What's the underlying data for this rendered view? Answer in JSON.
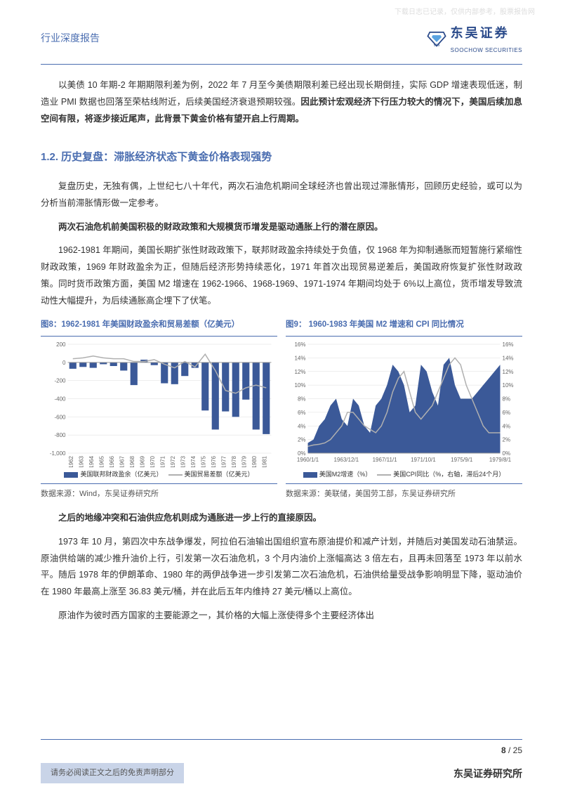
{
  "watermark": "下载日志已记录，仅供内部参考，股票报告网",
  "header": {
    "category": "行业深度报告",
    "logo_cn": "东吴证券",
    "logo_en": "SOOCHOW SECURITIES"
  },
  "paragraphs": {
    "p1": "以美债 10 年期-2 年期期限利差为例，2022 年 7 月至今美债期限利差已经出现长期倒挂，实际 GDP 增速表现低迷，制造业 PMI 数据也回落至荣枯线附近，后续美国经济衰退预期较强。",
    "p1_bold": "因此预计宏观经济下行压力较大的情况下，美国后续加息空间有限，将逐步接近尾声，此背景下黄金价格有望开启上行周期。",
    "section_title": "1.2.  历史复盘：滞胀经济状态下黄金价格表现强势",
    "p2": "复盘历史，无独有偶，上世纪七八十年代，两次石油危机期间全球经济也曾出现过滞胀情形，回顾历史经验，或可以为分析当前滞胀情形做一定参考。",
    "p3_bold": "两次石油危机前美国积极的财政政策和大规模货币增发是驱动通胀上行的潜在原因。",
    "p4": "1962-1981 年期间，美国长期扩张性财政政策下，联邦财政盈余持续处于负值，仅 1968 年为抑制通胀而短暂施行紧缩性财政政策，1969 年财政盈余为正，但随后经济形势持续恶化，1971 年首次出现贸易逆差后，美国政府恢复扩张性财政政策。同时货币政策方面，美国 M2 增速在 1962-1966、1968-1969、1971-1974 年期间均处于 6%以上高位，货币增发导致流动性大幅提升，为后续通胀高企埋下了伏笔。",
    "p5_bold": "之后的地缘冲突和石油供应危机则成为通胀进一步上行的直接原因。",
    "p6": "1973 年 10 月，第四次中东战争爆发，阿拉伯石油输出国组织宣布原油提价和减产计划，并随后对美国发动石油禁运。原油供给端的减少推升油价上行，引发第一次石油危机，3 个月内油价上涨幅高达 3 倍左右，且再未回落至 1973 年以前水平。随后 1978 年的伊朗革命、1980 年的两伊战争进一步引发第二次石油危机，石油供给量受战争影响明显下降，驱动油价在 1980 年最高上涨至 36.83 美元/桶，并在此后五年内维持 27 美元/桶以上高位。",
    "p7": "原油作为彼时西方国家的主要能源之一，其价格的大幅上涨使得多个主要经济体出"
  },
  "chart8": {
    "title": "图8：1962-1981 年美国财政盈余和贸易差额（亿美元）",
    "type": "bar_line",
    "categories": [
      "1962",
      "1963",
      "1964",
      "1965",
      "1966",
      "1967",
      "1968",
      "1969",
      "1970",
      "1971",
      "1972",
      "1973",
      "1974",
      "1975",
      "1976",
      "1977",
      "1978",
      "1979",
      "1980",
      "1981"
    ],
    "bar_values": [
      -70,
      -50,
      -60,
      -20,
      -40,
      -90,
      -250,
      30,
      -30,
      -230,
      -240,
      -150,
      -60,
      -530,
      -740,
      -540,
      -600,
      -410,
      -740,
      -790
    ],
    "line_values": [
      40,
      50,
      70,
      50,
      40,
      40,
      10,
      10,
      30,
      -20,
      -60,
      10,
      -50,
      90,
      -90,
      -310,
      -340,
      -280,
      -250,
      -280
    ],
    "ylim": [
      -1000,
      200
    ],
    "ytick_step": 200,
    "bar_color": "#3b5998",
    "line_color": "#b0b0b0",
    "grid_color": "#e0e0e0",
    "background_color": "#ffffff",
    "label_fontsize": 8,
    "legend": {
      "bar": "美国联邦财政盈余（亿美元）",
      "line": "美国贸易差额（亿美元）"
    },
    "source": "数据来源：Wind，东吴证券研究所"
  },
  "chart9": {
    "title": "图9：  1960-1983 年美国 M2 增速和 CPI 同比情况",
    "type": "dual_area_line",
    "x_labels": [
      "1960/1/1",
      "1963/12/1",
      "1967/11/1",
      "1971/10/1",
      "1975/9/1",
      "1979/8/1"
    ],
    "m2_values": [
      1.5,
      2,
      4,
      5,
      7,
      8,
      5,
      4,
      8,
      7,
      4,
      3,
      7,
      8,
      10,
      13,
      12,
      10,
      6,
      7,
      13,
      12,
      9,
      7,
      13,
      14,
      10,
      8,
      8,
      8,
      9,
      10,
      11,
      12,
      13
    ],
    "cpi_values": [
      1,
      1.2,
      1.3,
      1.5,
      2,
      3,
      4,
      6,
      6,
      5,
      4,
      3.5,
      3,
      4,
      6,
      9,
      11,
      12,
      9,
      6,
      5,
      6,
      7,
      9,
      11,
      13,
      14,
      13,
      10,
      8,
      6,
      4,
      3,
      3,
      3
    ],
    "ylim_left": [
      0,
      16
    ],
    "ylim_right": [
      0,
      16
    ],
    "ytick_step": 2,
    "area_color": "#3b5998",
    "line_color": "#b0b0b0",
    "grid_color": "#e0e0e0",
    "background_color": "#ffffff",
    "label_fontsize": 8,
    "legend": {
      "area": "美国M2增速（%）",
      "line": "美国CPI同比（%，右轴，滞后24个月）"
    },
    "source": "数据来源：美联储，美国劳工部，东吴证券研究所"
  },
  "footer": {
    "page": "8 ",
    "total": "/ 25",
    "disclaimer": "请务必阅读正文之后的免责声明部分",
    "institute": "东吴证券研究所"
  },
  "colors": {
    "brand_blue": "#4a6db0",
    "dark_blue": "#2a4a8a",
    "chart_blue": "#3b5998",
    "chart_gray": "#b0b0b0",
    "footer_bg": "#c9d4e8"
  }
}
